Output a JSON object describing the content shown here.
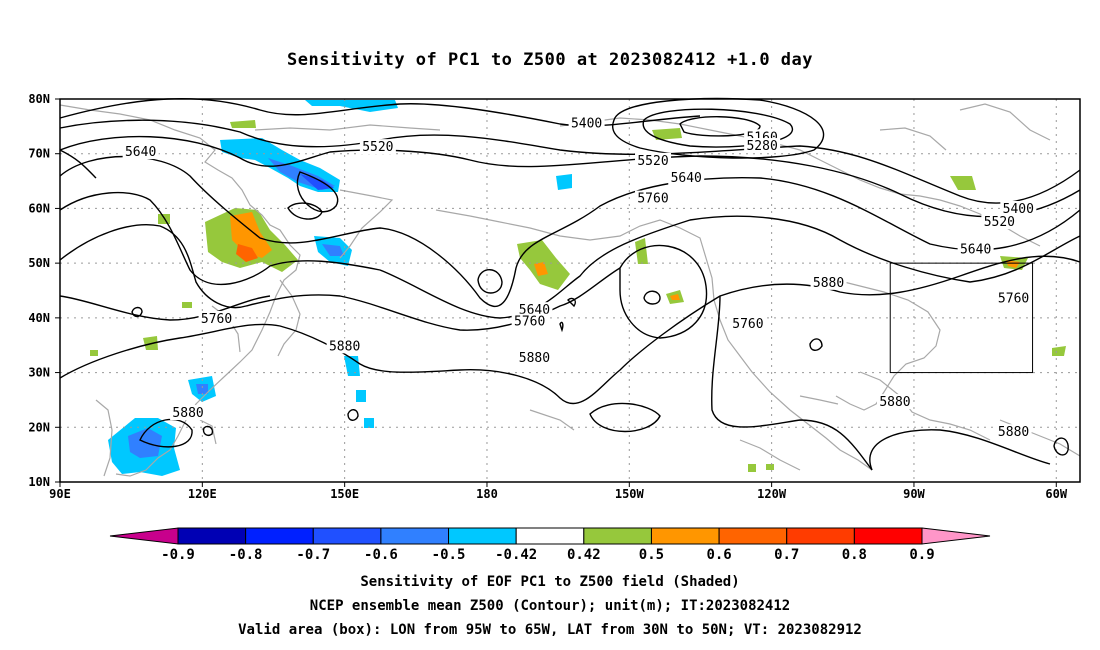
{
  "title": "Sensitivity of PC1 to Z500 at 2023082412 +1.0 day",
  "map": {
    "lat_labels": [
      "80N",
      "70N",
      "60N",
      "50N",
      "40N",
      "30N",
      "20N",
      "10N"
    ],
    "lon_labels": [
      "90E",
      "120E",
      "150E",
      "180",
      "150W",
      "120W",
      "90W",
      "60W"
    ],
    "lat_range": [
      10,
      80
    ],
    "lon_range": [
      90,
      305
    ],
    "contour_labels": [
      {
        "text": "5400",
        "lon": 201,
        "lat": 75.5
      },
      {
        "text": "5160",
        "lon": 238,
        "lat": 73
      },
      {
        "text": "5280",
        "lon": 238,
        "lat": 71.4
      },
      {
        "text": "5520",
        "lon": 157,
        "lat": 71.2
      },
      {
        "text": "5640",
        "lon": 107,
        "lat": 70.3
      },
      {
        "text": "5520",
        "lon": 215,
        "lat": 68.7
      },
      {
        "text": "5640",
        "lon": 222,
        "lat": 65.6
      },
      {
        "text": "5760",
        "lon": 215,
        "lat": 61.8
      },
      {
        "text": "5400",
        "lon": 292,
        "lat": 59.9
      },
      {
        "text": "5520",
        "lon": 288,
        "lat": 57.5
      },
      {
        "text": "5640",
        "lon": 283,
        "lat": 52.5
      },
      {
        "text": "5880",
        "lon": 252,
        "lat": 46.4
      },
      {
        "text": "5760",
        "lon": 291,
        "lat": 43.5
      },
      {
        "text": "5640",
        "lon": 190,
        "lat": 41.4
      },
      {
        "text": "5760",
        "lon": 189,
        "lat": 39.3
      },
      {
        "text": "5760",
        "lon": 123,
        "lat": 39.8
      },
      {
        "text": "5760",
        "lon": 235,
        "lat": 38.9
      },
      {
        "text": "5880",
        "lon": 150,
        "lat": 34.8
      },
      {
        "text": "5880",
        "lon": 190,
        "lat": 32.7
      },
      {
        "text": "5880",
        "lon": 266,
        "lat": 24.6
      },
      {
        "text": "5880",
        "lon": 117,
        "lat": 22.6
      },
      {
        "text": "5880",
        "lon": 291,
        "lat": 19.1
      }
    ],
    "valid_box": {
      "lon": [
        265,
        295
      ],
      "lat": [
        30,
        50
      ]
    }
  },
  "colorbar": {
    "colors": [
      "#c8008c",
      "#0000b4",
      "#0020ff",
      "#2050ff",
      "#3080ff",
      "#00c8ff",
      "#ffffff",
      "#96c83c",
      "#ff9600",
      "#ff6400",
      "#ff3c00",
      "#ff0000",
      "#ff96c8"
    ],
    "labels": [
      "-0.9",
      "-0.8",
      "-0.7",
      "-0.6",
      "-0.5",
      "-0.42",
      "0.42",
      "0.5",
      "0.6",
      "0.7",
      "0.8",
      "0.9"
    ]
  },
  "footer": {
    "line1": "Sensitivity of EOF PC1 to Z500 field (Shaded)",
    "line2": "NCEP ensemble mean Z500 (Contour); unit(m); IT:2023082412",
    "line3": "Valid area (box): LON from 95W to 65W, LAT from 30N to 50N; VT: 2023082912"
  },
  "colors": {
    "contour": "#000000",
    "coastline": "#a8a8a8",
    "positive_green": "#96c83c",
    "positive_orange": "#ff9600",
    "negative_blue": "#3080ff",
    "negative_cyan": "#00c8ff",
    "negative_dark": "#2050ff"
  }
}
